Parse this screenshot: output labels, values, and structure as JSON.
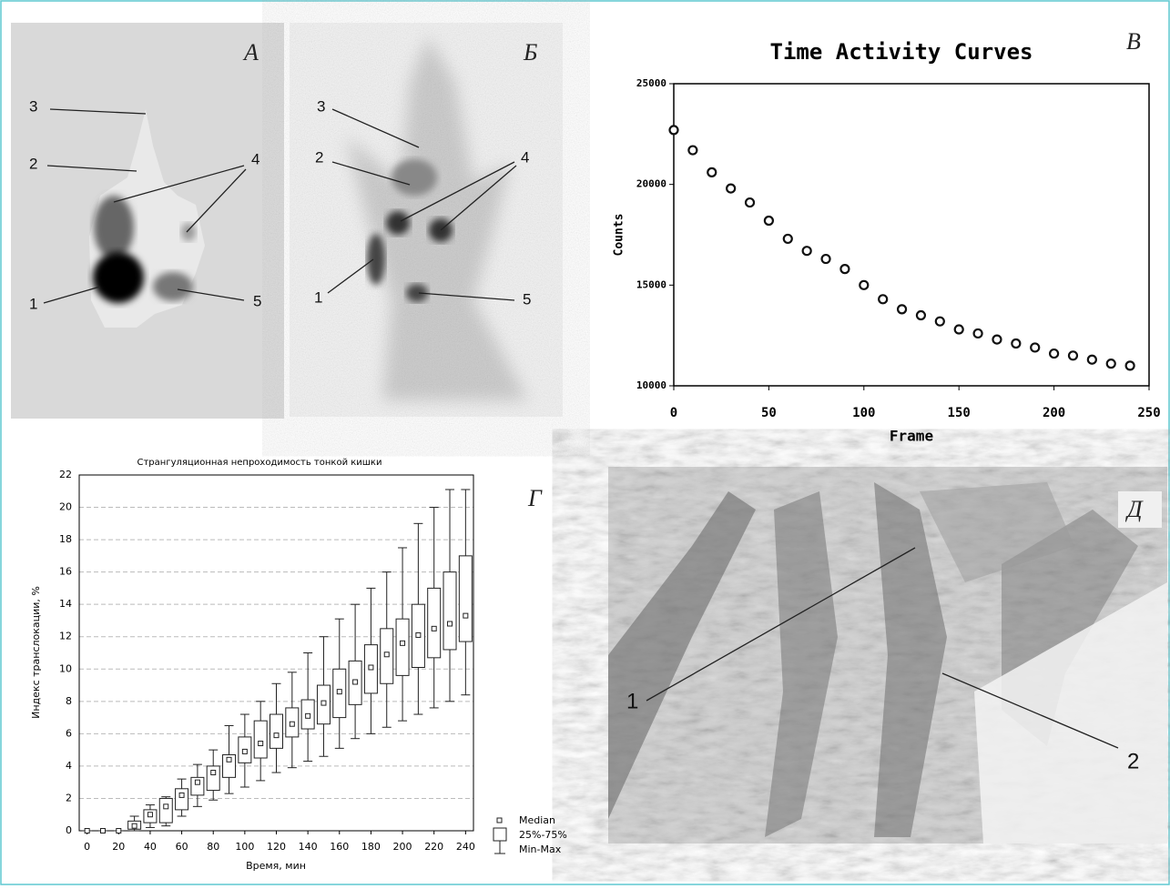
{
  "chart_data": [
    {
      "type": "scatter",
      "title": "Time Activity Curves",
      "panel": "В",
      "x_label": "Frame",
      "y_label": "Counts",
      "x": [
        0,
        10,
        20,
        30,
        40,
        50,
        60,
        70,
        80,
        90,
        100,
        110,
        120,
        130,
        140,
        150,
        160,
        170,
        180,
        190,
        200,
        210,
        220,
        230,
        240
      ],
      "values": [
        22700,
        21700,
        20600,
        19800,
        19100,
        18200,
        17300,
        16700,
        16300,
        15800,
        15000,
        14300,
        13800,
        13500,
        13200,
        12800,
        12600,
        12300,
        12100,
        11900,
        11600,
        11500,
        11300,
        11100,
        11000
      ],
      "xlim": [
        0,
        250
      ],
      "xticks": [
        0,
        50,
        100,
        150,
        200,
        250
      ],
      "ylim": [
        10000,
        25000
      ],
      "yticks": [
        10000,
        15000,
        20000,
        25000
      ],
      "color": "#111111"
    },
    {
      "type": "box",
      "title": "Странгуляционная непроходимость тонкой кишки",
      "panel": "Г",
      "x_label": "Время, мин",
      "y_label": "Индекс транслокации, %",
      "x": [
        0,
        10,
        20,
        30,
        40,
        50,
        60,
        70,
        80,
        90,
        100,
        110,
        120,
        130,
        140,
        150,
        160,
        170,
        180,
        190,
        200,
        210,
        220,
        230,
        240
      ],
      "median": [
        0,
        0,
        0,
        0.3,
        1.0,
        1.5,
        2.2,
        3.0,
        3.6,
        4.4,
        4.9,
        5.4,
        5.9,
        6.6,
        7.1,
        7.9,
        8.6,
        9.2,
        10.1,
        10.9,
        11.6,
        12.1,
        12.5,
        12.8,
        13.3
      ],
      "q1": [
        0,
        0,
        0,
        0.1,
        0.5,
        0.5,
        1.3,
        2.2,
        2.5,
        3.3,
        4.2,
        4.5,
        5.1,
        5.8,
        6.3,
        6.6,
        7.0,
        7.8,
        8.5,
        9.1,
        9.6,
        10.1,
        10.7,
        11.2,
        11.7
      ],
      "q3": [
        0,
        0,
        0,
        0.6,
        1.3,
        2.0,
        2.6,
        3.3,
        4.0,
        4.7,
        5.8,
        6.8,
        7.2,
        7.6,
        8.1,
        9.0,
        10.0,
        10.5,
        11.5,
        12.5,
        13.1,
        14.0,
        15.0,
        16.0,
        17.0
      ],
      "min": [
        0,
        0,
        0,
        0,
        0.2,
        0.3,
        0.9,
        1.5,
        1.9,
        2.3,
        2.7,
        3.1,
        3.6,
        3.9,
        4.3,
        4.6,
        5.1,
        5.7,
        6.0,
        6.4,
        6.8,
        7.2,
        7.6,
        8.0,
        8.4
      ],
      "max": [
        0,
        0,
        0,
        0.9,
        1.6,
        2.1,
        3.2,
        4.1,
        5.0,
        6.5,
        7.2,
        8.0,
        9.1,
        9.8,
        11.0,
        12.0,
        13.1,
        14.0,
        15.0,
        16.0,
        17.5,
        19.0,
        20.0,
        21.1,
        21.1
      ],
      "legend": [
        "Median",
        "25%-75%",
        "Min-Max"
      ],
      "xlim": [
        -5,
        245
      ],
      "xticks": [
        0,
        20,
        40,
        60,
        80,
        100,
        120,
        140,
        160,
        180,
        200,
        220,
        240
      ],
      "ylim": [
        0,
        22
      ],
      "yticks": [
        0,
        2,
        4,
        6,
        8,
        10,
        12,
        14,
        16,
        18,
        20,
        22
      ],
      "grid": true,
      "color": "#222222"
    }
  ],
  "panels": [
    {
      "label": "А",
      "callouts": [
        "1",
        "2",
        "3",
        "4",
        "5"
      ]
    },
    {
      "label": "Б",
      "callouts": [
        "1",
        "2",
        "3",
        "4",
        "5"
      ]
    },
    {
      "label": "Д",
      "callouts": [
        "1",
        "2"
      ]
    }
  ]
}
